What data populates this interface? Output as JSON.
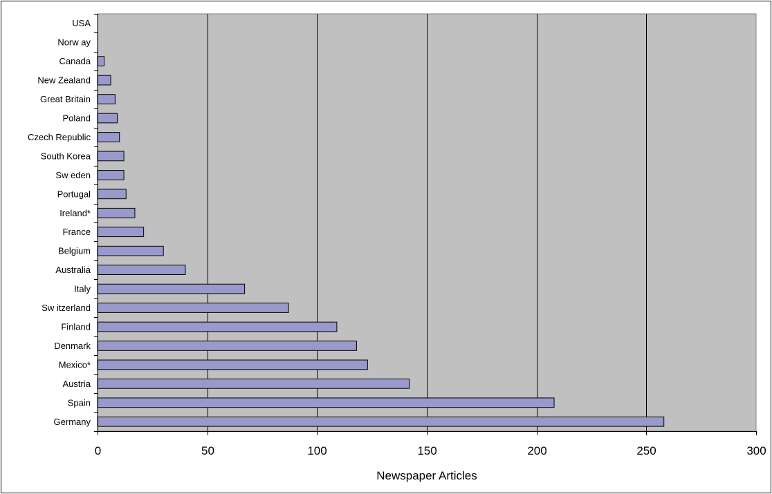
{
  "chart_data": {
    "type": "bar",
    "orientation": "horizontal",
    "title": "",
    "xlabel": "Newspaper Articles",
    "ylabel": "",
    "xlim": [
      0,
      300
    ],
    "xticks": [
      0,
      50,
      100,
      150,
      200,
      250,
      300
    ],
    "grid": true,
    "legend": "none",
    "colors": {
      "plot_background": "#c0c0c0",
      "bar_fill": "#9999cc",
      "bar_stroke": "#000000",
      "gridline": "#000000"
    },
    "categories": [
      "Germany",
      "Spain",
      "Austria",
      "Mexico*",
      "Denmark",
      "Finland",
      "Sw itzerland",
      "Italy",
      "Australia",
      "Belgium",
      "France",
      "Ireland*",
      "Portugal",
      "Sw eden",
      "South Korea",
      "Czech Republic",
      "Poland",
      "Great Britain",
      "New Zealand",
      "Canada",
      "Norw ay",
      "USA"
    ],
    "values": [
      258,
      208,
      142,
      123,
      118,
      109,
      87,
      67,
      40,
      30,
      21,
      17,
      13,
      12,
      12,
      10,
      9,
      8,
      6,
      3,
      0,
      0
    ]
  }
}
